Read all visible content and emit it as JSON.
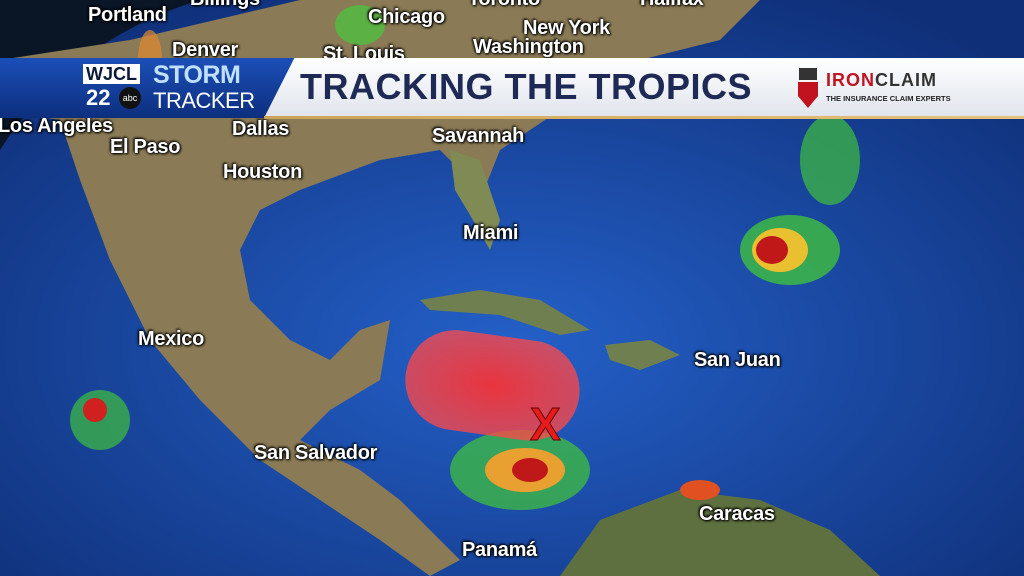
{
  "banner": {
    "station": "WJCL",
    "channel": "22",
    "network": "abc",
    "storm": "STORM",
    "tracker": "TRACKER",
    "title": "TRACKING THE TROPICS",
    "sponsor": {
      "name_part1": "IRON",
      "name_part2": "CLAIM",
      "tagline": "THE INSURANCE CLAIM EXPERTS"
    }
  },
  "cities": [
    "Billings",
    "Portland",
    "Chicago",
    "Toronto",
    "Halifax",
    "New York",
    "Washington",
    "Denver",
    "St. Louis",
    "Los Angeles",
    "Dallas",
    "El Paso",
    "Savannah",
    "Houston",
    "Miami",
    "Mexico",
    "San Juan",
    "San Salvador",
    "Caracas",
    "Panamá"
  ],
  "annotations": {
    "development_area_marker": "X",
    "development_area_color": "#ff3b3b"
  },
  "colors": {
    "ocean": "#1c4fb0",
    "brand_blue": "#1b4fb8",
    "title_navy": "#1e2a55",
    "sponsor_red": "#c1121f"
  }
}
